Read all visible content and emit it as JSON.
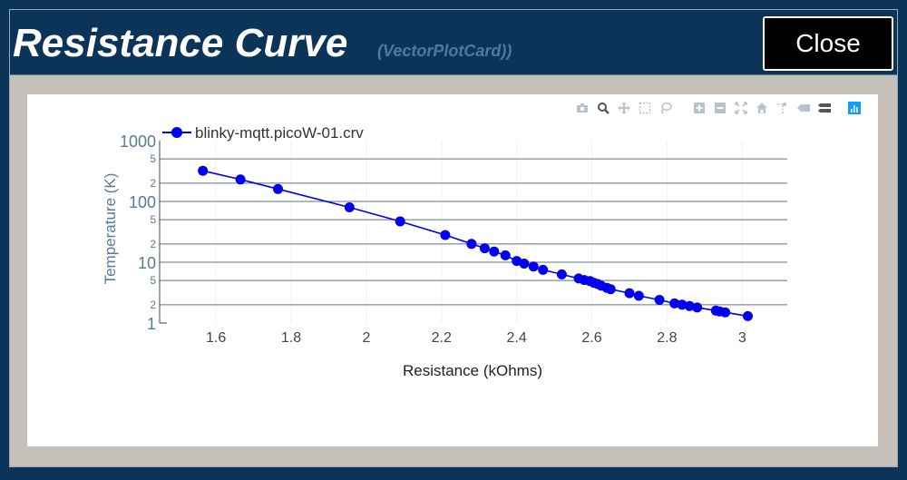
{
  "header": {
    "title": "Resistance Curve",
    "subtitle": "(VectorPlotCard))",
    "close_label": "Close"
  },
  "modebar": {
    "icons": [
      "camera-icon",
      "zoom-icon",
      "pan-icon",
      "box-select-icon",
      "lasso-select-icon",
      "zoom-in-icon",
      "zoom-out-icon",
      "autoscale-icon",
      "reset-axes-icon",
      "spike-lines-icon",
      "hover-closest-icon",
      "hover-compare-icon",
      "plotly-logo-icon"
    ]
  },
  "colors": {
    "accent": "#0000ee",
    "header_bg": "#0b3458",
    "frame_bg": "#c5c0b9",
    "axis_text": "#5a7a99"
  },
  "chart_data": {
    "type": "line",
    "mode": "lines+markers",
    "xlabel": "Resistance (kOhms)",
    "ylabel": "Temperature (K)",
    "xlim": [
      1.45,
      3.12
    ],
    "ylim": [
      1,
      1000
    ],
    "yscale": "log",
    "x_ticks": [
      "1.6",
      "1.8",
      "2",
      "2.2",
      "2.4",
      "2.6",
      "2.8",
      "3"
    ],
    "y_major_ticks": [
      "1",
      "10",
      "100",
      "1000"
    ],
    "y_minor_ticks": [
      "2",
      "5",
      "2",
      "5",
      "2",
      "5"
    ],
    "grid": true,
    "legend_position": "top-left",
    "series": [
      {
        "name": "blinky-mqtt.picoW-01.crv",
        "color": "#0000ee",
        "x": [
          1.565,
          1.665,
          1.765,
          1.955,
          2.09,
          2.21,
          2.28,
          2.315,
          2.34,
          2.37,
          2.4,
          2.42,
          2.445,
          2.47,
          2.52,
          2.565,
          2.58,
          2.595,
          2.605,
          2.615,
          2.625,
          2.64,
          2.65,
          2.7,
          2.725,
          2.78,
          2.82,
          2.84,
          2.86,
          2.88,
          2.93,
          2.94,
          2.955,
          3.015
        ],
        "y": [
          320,
          230,
          160,
          80,
          47,
          28,
          20,
          17,
          15,
          13,
          10.5,
          9.5,
          8.5,
          7.5,
          6.3,
          5.4,
          5.1,
          4.9,
          4.6,
          4.4,
          4.1,
          3.8,
          3.6,
          3.1,
          2.8,
          2.4,
          2.1,
          2.0,
          1.9,
          1.8,
          1.6,
          1.55,
          1.5,
          1.3
        ]
      }
    ]
  }
}
